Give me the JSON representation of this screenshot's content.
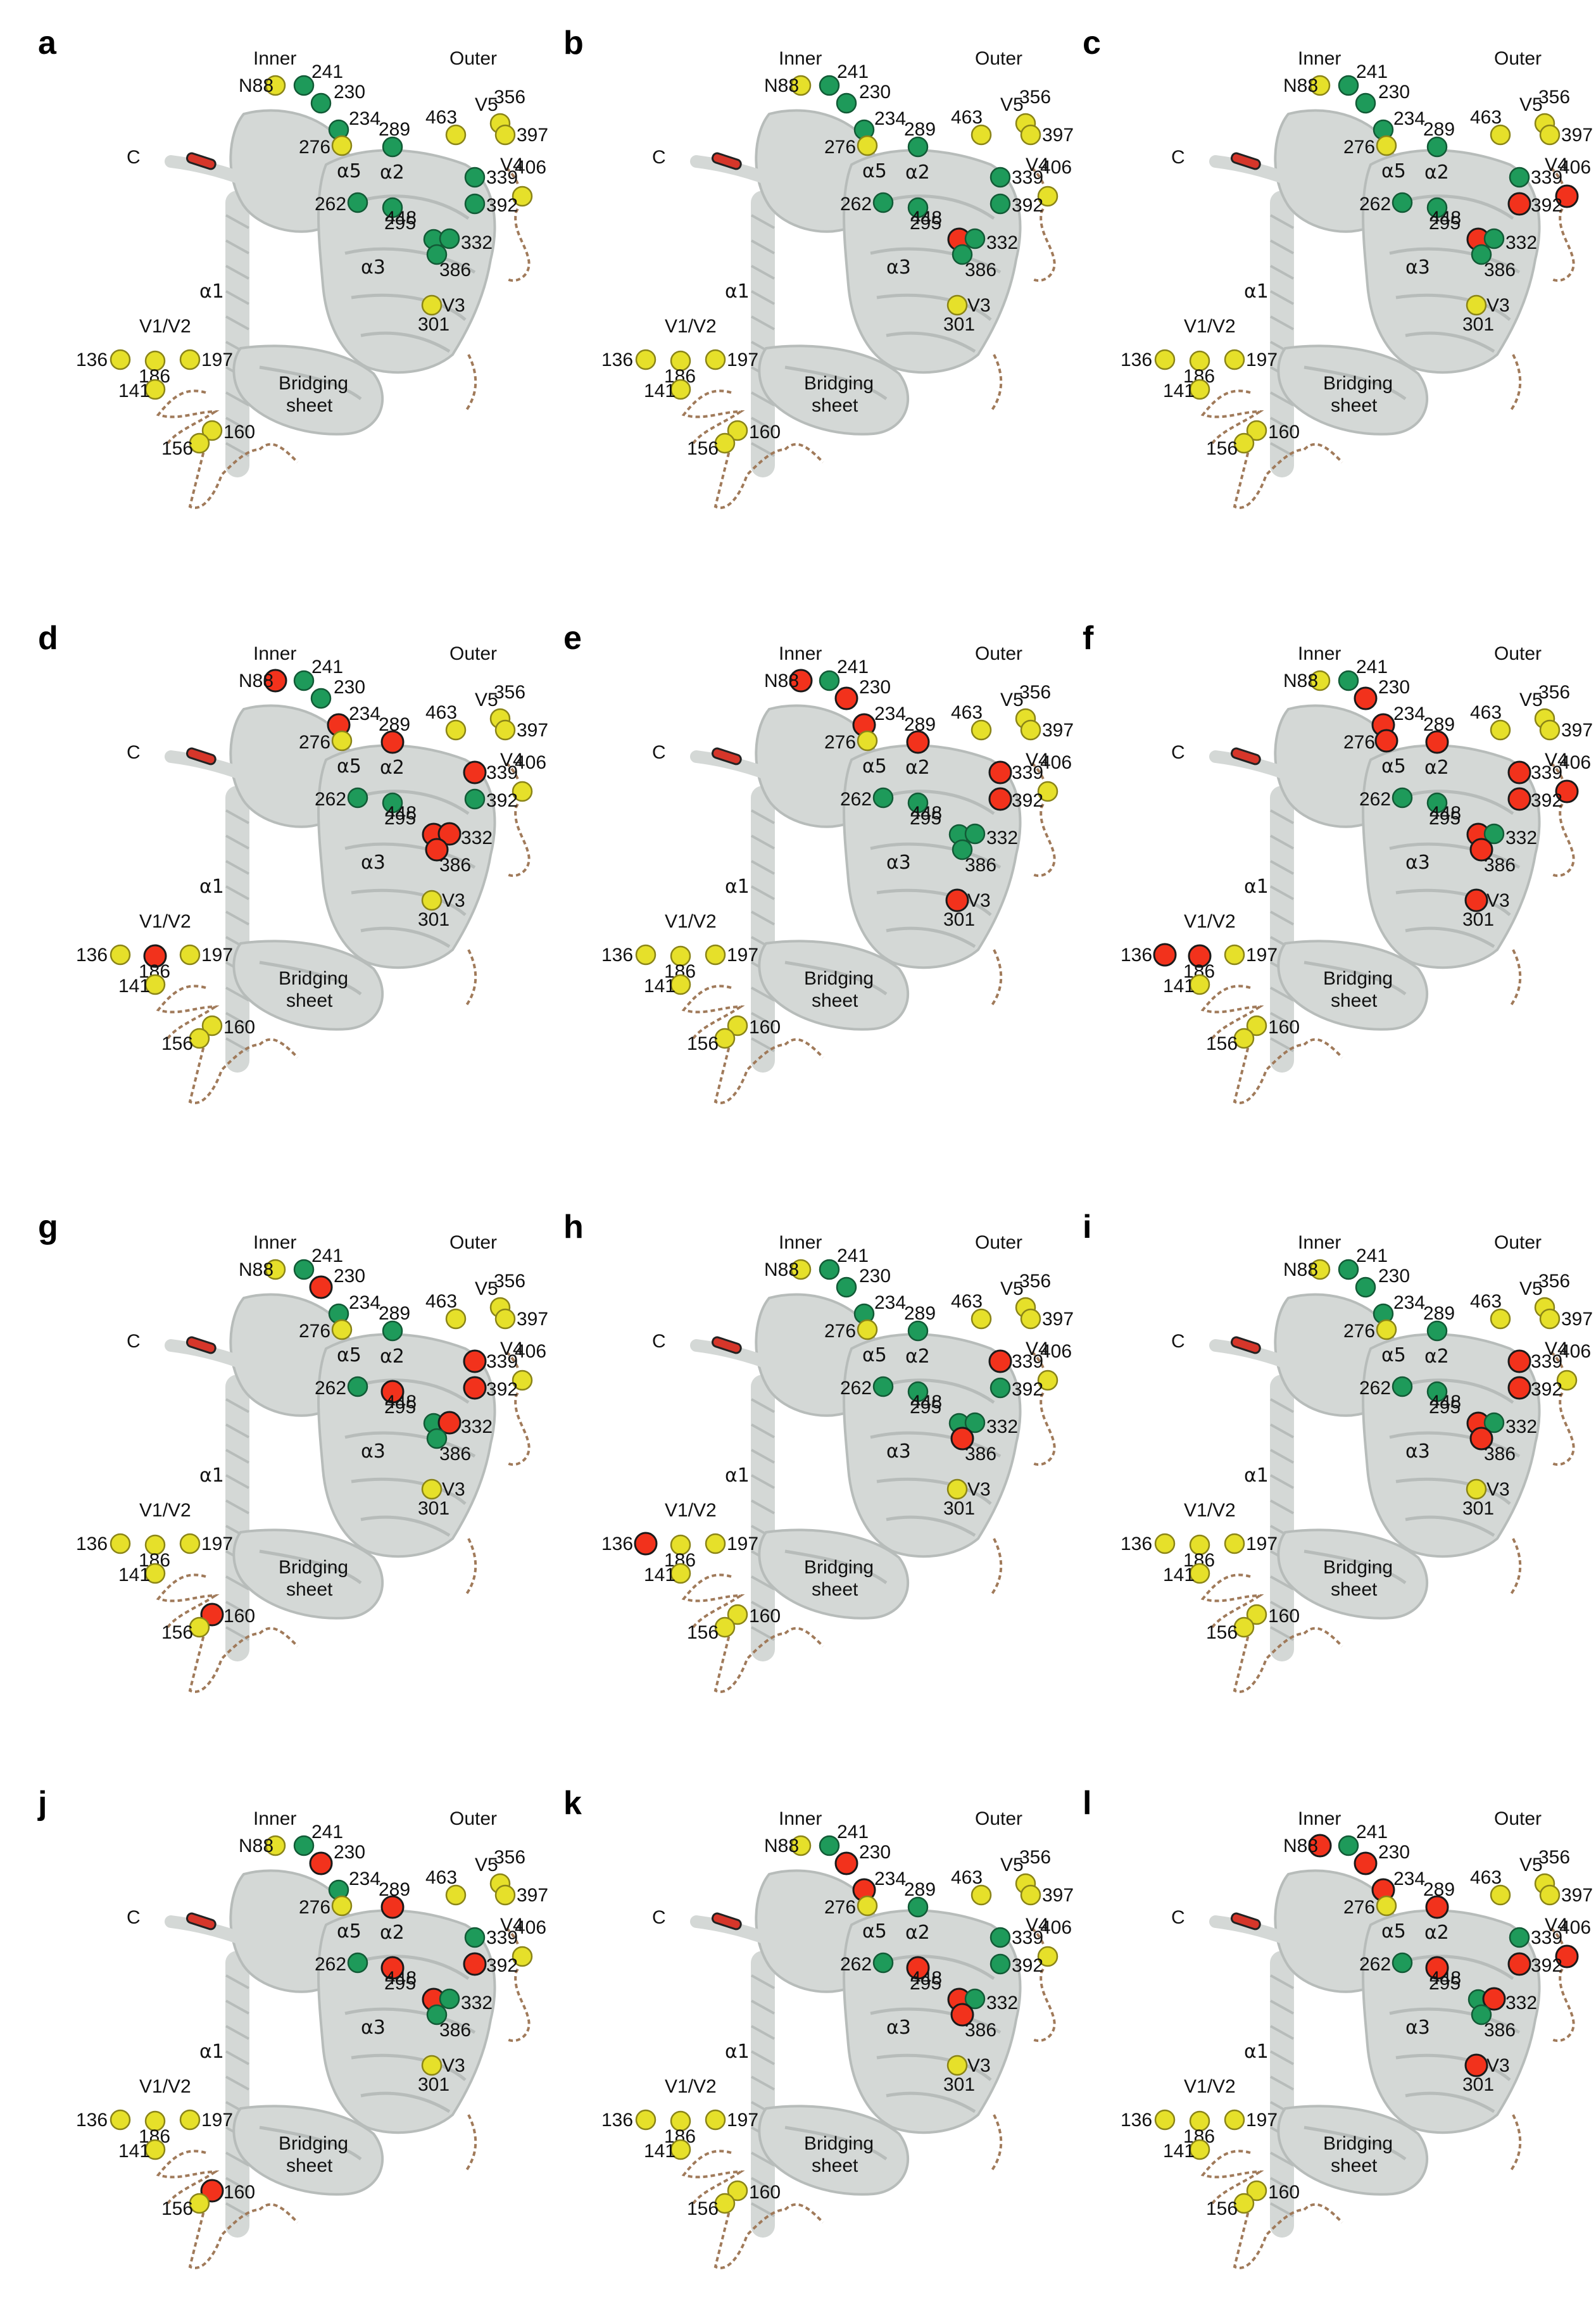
{
  "figure": {
    "panels": [
      {
        "letter": "a",
        "red": []
      },
      {
        "letter": "b",
        "red": [
          "295"
        ]
      },
      {
        "letter": "c",
        "red": [
          "295",
          "392",
          "406"
        ]
      },
      {
        "letter": "d",
        "red": [
          "N88",
          "234",
          "289",
          "339",
          "295",
          "332",
          "386",
          "186"
        ]
      },
      {
        "letter": "e",
        "red": [
          "N88",
          "230",
          "234",
          "289",
          "339",
          "392",
          "301"
        ]
      },
      {
        "letter": "f",
        "red": [
          "230",
          "234",
          "276",
          "289",
          "339",
          "392",
          "406",
          "295",
          "386",
          "301",
          "136",
          "186"
        ]
      },
      {
        "letter": "g",
        "red": [
          "230",
          "448",
          "339",
          "392",
          "332",
          "160"
        ]
      },
      {
        "letter": "h",
        "red": [
          "339",
          "386",
          "136"
        ]
      },
      {
        "letter": "i",
        "red": [
          "339",
          "392",
          "295",
          "386"
        ]
      },
      {
        "letter": "j",
        "red": [
          "230",
          "289",
          "448",
          "392",
          "295",
          "160"
        ]
      },
      {
        "letter": "k",
        "red": [
          "230",
          "234",
          "448",
          "295",
          "386"
        ]
      },
      {
        "letter": "l",
        "red": [
          "N88",
          "230",
          "234",
          "289",
          "448",
          "392",
          "406",
          "332",
          "301"
        ]
      }
    ],
    "region_labels": {
      "inner": "Inner",
      "outer": "Outer",
      "c_term": "C",
      "alpha1": "α1",
      "alpha2": "α2",
      "alpha3": "α3",
      "alpha5": "α5",
      "v1v2": "V1/V2",
      "v3": "V3",
      "v4": "V4",
      "v5": "V5",
      "bridging_1": "Bridging",
      "bridging_2": "sheet"
    },
    "sites": [
      {
        "id": "N88",
        "label": "N88",
        "base": "yellow"
      },
      {
        "id": "241",
        "label": "241",
        "base": "green"
      },
      {
        "id": "230",
        "label": "230",
        "base": "green"
      },
      {
        "id": "234",
        "label": "234",
        "base": "green"
      },
      {
        "id": "276",
        "label": "276",
        "base": "yellow"
      },
      {
        "id": "289",
        "label": "289",
        "base": "green"
      },
      {
        "id": "463",
        "label": "463",
        "base": "yellow"
      },
      {
        "id": "356",
        "label": "356",
        "base": "yellow"
      },
      {
        "id": "397",
        "label": "397",
        "base": "yellow"
      },
      {
        "id": "406",
        "label": "406",
        "base": "yellow"
      },
      {
        "id": "339",
        "label": "339",
        "base": "green"
      },
      {
        "id": "392",
        "label": "392",
        "base": "green"
      },
      {
        "id": "262",
        "label": "262",
        "base": "green"
      },
      {
        "id": "448",
        "label": "448",
        "base": "green"
      },
      {
        "id": "295",
        "label": "295",
        "base": "green"
      },
      {
        "id": "332",
        "label": "332",
        "base": "green"
      },
      {
        "id": "386",
        "label": "386",
        "base": "green"
      },
      {
        "id": "301",
        "label": "301",
        "base": "yellow"
      },
      {
        "id": "136",
        "label": "136",
        "base": "yellow"
      },
      {
        "id": "186",
        "label": "186",
        "base": "yellow"
      },
      {
        "id": "197",
        "label": "197",
        "base": "yellow"
      },
      {
        "id": "141",
        "label": "141",
        "base": "yellow"
      },
      {
        "id": "160",
        "label": "160",
        "base": "yellow"
      },
      {
        "id": "156",
        "label": "156",
        "base": "yellow"
      }
    ],
    "colors": {
      "yellow": "#e6e02a",
      "green": "#1e9a5a",
      "red": "#f2321c",
      "ribbon": "#d4d8d6",
      "ribbon_edge": "#b7bcba",
      "loop": "#a07a5a",
      "c_term": "#d6362a"
    }
  }
}
